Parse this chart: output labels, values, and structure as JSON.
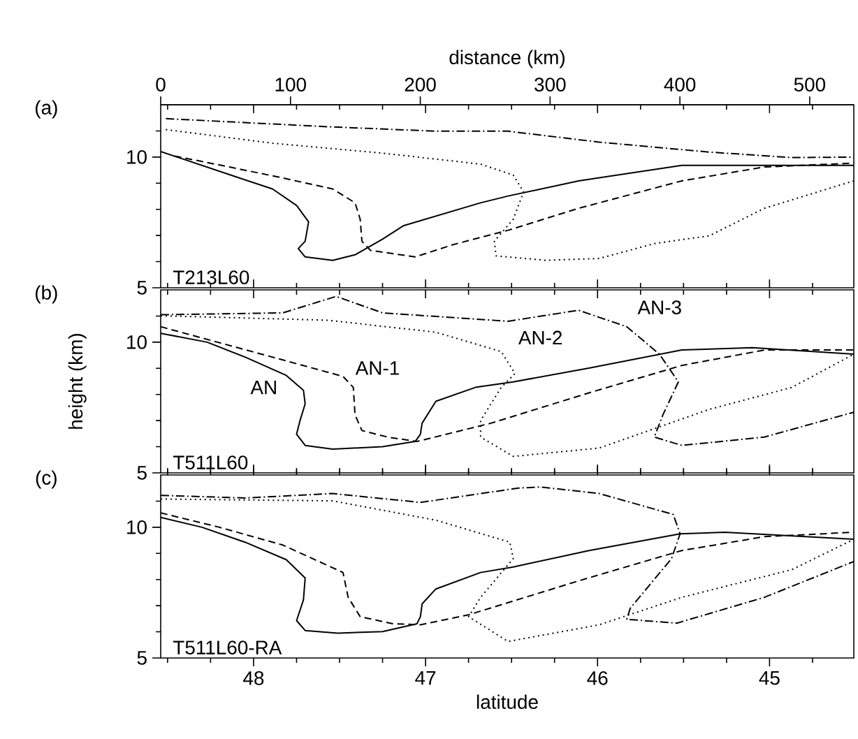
{
  "chart_data": [
    {
      "type": "line",
      "title": "(a)",
      "annotations": [
        "T213L60"
      ],
      "x2label": "distance (km)",
      "x2lim": [
        0,
        534
      ],
      "x2ticks": [
        0,
        100,
        200,
        300,
        400,
        500
      ],
      "xlim": [
        48.54,
        44.51
      ],
      "ylim": [
        5,
        12
      ],
      "tick_labels": "y",
      "xticks": [
        {
          "value": 48.5,
          "label": null
        },
        {
          "value": 48.25,
          "label": null
        },
        48,
        {
          "value": 47.75,
          "label": null
        },
        {
          "value": 47.5,
          "label": null
        },
        {
          "value": 47.25,
          "label": null
        },
        47,
        {
          "value": 46.75,
          "label": null
        },
        {
          "value": 46.5,
          "label": null
        },
        {
          "value": 46.25,
          "label": null
        },
        46,
        {
          "value": 45.75,
          "label": null
        },
        {
          "value": 45.5,
          "label": null
        },
        {
          "value": 45.25,
          "label": null
        },
        45,
        {
          "value": 44.75,
          "label": null
        }
      ],
      "yticks": [
        5,
        {
          "value": 6,
          "label": null
        },
        {
          "value": 7,
          "label": null
        },
        {
          "value": 8,
          "label": null
        },
        {
          "value": 9,
          "label": null
        },
        10,
        {
          "value": 11,
          "label": null
        }
      ],
      "series": [
        {
          "color": "#000000",
          "line_style": "solid",
          "x": [
            48.54,
            48.11,
            47.89,
            47.75,
            47.68,
            47.7,
            47.74,
            47.7,
            47.54,
            47.41,
            47.25,
            47.13,
            46.68,
            46.52,
            46.11,
            45.51,
            45.03,
            44.51
          ],
          "values": [
            10.21,
            9.26,
            8.78,
            8.15,
            7.52,
            6.78,
            6.5,
            6.18,
            6.05,
            6.26,
            6.86,
            7.37,
            8.25,
            8.51,
            9.09,
            9.68,
            9.68,
            9.68
          ]
        },
        {
          "color": "#000000",
          "line_style": "dashed",
          "x": [
            48.46,
            48.14,
            47.83,
            47.54,
            47.41,
            47.38,
            47.37,
            47.32,
            47.06,
            46.84,
            46.52,
            46.11,
            45.51,
            45.03,
            44.51
          ],
          "values": [
            10.04,
            9.62,
            9.2,
            8.78,
            8.25,
            7.62,
            6.78,
            6.43,
            6.18,
            6.65,
            7.2,
            8.04,
            9.09,
            9.62,
            9.77
          ]
        },
        {
          "color": "#000000",
          "line_style": "dotted",
          "x": [
            48.51,
            47.89,
            47.25,
            46.68,
            46.49,
            46.43,
            46.49,
            46.6,
            46.59,
            46.3,
            45.99,
            45.67,
            45.35,
            45.03,
            44.51
          ],
          "values": [
            11.05,
            10.53,
            10.15,
            9.73,
            9.31,
            8.67,
            7.62,
            6.78,
            6.22,
            6.05,
            6.12,
            6.69,
            6.99,
            8.04,
            9.09
          ]
        },
        {
          "color": "#000000",
          "line_style": "dashdot",
          "x": [
            48.51,
            47.57,
            46.94,
            46.52,
            45.99,
            45.35,
            44.87,
            44.51
          ],
          "values": [
            11.47,
            11.16,
            10.99,
            10.99,
            10.57,
            10.19,
            9.98,
            10.0
          ]
        }
      ]
    },
    {
      "type": "line",
      "title": "(b)",
      "ylabel": "height (km)",
      "xlim": [
        48.54,
        44.51
      ],
      "ylim": [
        5,
        12
      ],
      "tick_labels": "y",
      "annotations": [
        "T511L60",
        "AN",
        "AN-1",
        "AN-2",
        "AN-3"
      ],
      "xticks": [
        {
          "value": 48.5,
          "label": null
        },
        {
          "value": 48.25,
          "label": null
        },
        48,
        {
          "value": 47.75,
          "label": null
        },
        {
          "value": 47.5,
          "label": null
        },
        {
          "value": 47.25,
          "label": null
        },
        47,
        {
          "value": 46.75,
          "label": null
        },
        {
          "value": 46.5,
          "label": null
        },
        {
          "value": 46.25,
          "label": null
        },
        46,
        {
          "value": 45.75,
          "label": null
        },
        {
          "value": 45.5,
          "label": null
        },
        {
          "value": 45.25,
          "label": null
        },
        45,
        {
          "value": 44.75,
          "label": null
        }
      ],
      "yticks": [
        5,
        {
          "value": 6,
          "label": null
        },
        {
          "value": 7,
          "label": null
        },
        {
          "value": 8,
          "label": null
        },
        {
          "value": 9,
          "label": null
        },
        10,
        {
          "value": 11,
          "label": null
        }
      ],
      "series": [
        {
          "color": "#000000",
          "line_style": "solid",
          "x": [
            48.54,
            48.27,
            48.05,
            47.81,
            47.71,
            47.7,
            47.73,
            47.75,
            47.7,
            47.54,
            47.25,
            47.06,
            47.03,
            47.02,
            46.94,
            46.71,
            46.49,
            46.05,
            45.51,
            45.1,
            44.51
          ],
          "values": [
            10.34,
            10.0,
            9.43,
            8.73,
            8.16,
            7.64,
            7.0,
            6.48,
            6.05,
            5.91,
            6.0,
            6.2,
            6.48,
            6.9,
            7.74,
            8.27,
            8.48,
            9.01,
            9.7,
            9.79,
            9.54
          ]
        },
        {
          "color": "#000000",
          "line_style": "dashed",
          "x": [
            48.54,
            48.21,
            47.83,
            47.48,
            47.42,
            47.41,
            47.37,
            47.22,
            47.05,
            46.62,
            46.05,
            45.51,
            45.03,
            44.51
          ],
          "values": [
            10.59,
            10.0,
            9.32,
            8.69,
            8.27,
            7.22,
            6.62,
            6.37,
            6.2,
            6.9,
            8.06,
            9.11,
            9.7,
            9.7
          ]
        },
        {
          "color": "#000000",
          "line_style": "dotted",
          "x": [
            48.54,
            47.57,
            46.94,
            46.56,
            46.48,
            46.56,
            46.68,
            46.68,
            46.49,
            45.99,
            45.35,
            44.87,
            44.51
          ],
          "values": [
            11.01,
            10.84,
            10.38,
            9.64,
            8.8,
            8.27,
            7.0,
            6.37,
            5.63,
            5.95,
            7.43,
            8.27,
            9.54
          ]
        },
        {
          "color": "#000000",
          "line_style": "dashdot",
          "x": [
            48.54,
            47.83,
            47.52,
            47.25,
            46.52,
            46.11,
            45.83,
            45.64,
            45.53,
            45.62,
            45.67,
            45.51,
            45.03,
            44.51
          ],
          "values": [
            11.05,
            11.12,
            11.75,
            11.12,
            10.8,
            11.22,
            10.59,
            9.54,
            8.48,
            7.22,
            6.37,
            6.05,
            6.37,
            7.32
          ]
        }
      ]
    },
    {
      "type": "line",
      "title": "(c)",
      "xlabel": "latitude",
      "annotations": [
        "T511L60-RA"
      ],
      "xlim": [
        48.54,
        44.51
      ],
      "ylim": [
        5,
        12
      ],
      "xticks": [
        {
          "value": 48.5,
          "label": null
        },
        {
          "value": 48.25,
          "label": null
        },
        48,
        {
          "value": 47.75,
          "label": null
        },
        {
          "value": 47.5,
          "label": null
        },
        {
          "value": 47.25,
          "label": null
        },
        47,
        {
          "value": 46.75,
          "label": null
        },
        {
          "value": 46.5,
          "label": null
        },
        {
          "value": 46.25,
          "label": null
        },
        46,
        {
          "value": 45.75,
          "label": null
        },
        {
          "value": 45.5,
          "label": null
        },
        {
          "value": 45.25,
          "label": null
        },
        45,
        {
          "value": 44.75,
          "label": null
        }
      ],
      "yticks": [
        5,
        {
          "value": 6,
          "label": null
        },
        {
          "value": 7,
          "label": null
        },
        {
          "value": 8,
          "label": null
        },
        {
          "value": 9,
          "label": null
        },
        10,
        {
          "value": 11,
          "label": null
        }
      ],
      "series": [
        {
          "color": "#000000",
          "line_style": "solid",
          "x": [
            48.54,
            48.3,
            48.05,
            47.81,
            47.7,
            47.71,
            47.75,
            47.7,
            47.51,
            47.25,
            47.05,
            47.03,
            47.02,
            46.94,
            46.68,
            46.49,
            46.05,
            45.52,
            45.26,
            44.51
          ],
          "values": [
            10.38,
            10.0,
            9.43,
            8.76,
            8.06,
            7.22,
            6.43,
            6.05,
            5.95,
            6.01,
            6.31,
            6.58,
            7.07,
            7.64,
            8.27,
            8.48,
            9.11,
            9.75,
            9.81,
            9.54
          ]
        },
        {
          "color": "#000000",
          "line_style": "dashed",
          "x": [
            48.54,
            48.21,
            47.83,
            47.48,
            47.45,
            47.38,
            47.19,
            47.03,
            46.75,
            46.11,
            45.51,
            45.03,
            44.51
          ],
          "values": [
            10.55,
            10.02,
            9.32,
            8.27,
            7.32,
            6.58,
            6.31,
            6.27,
            6.65,
            7.95,
            9.11,
            9.64,
            9.81
          ]
        },
        {
          "color": "#000000",
          "line_style": "dotted",
          "x": [
            48.54,
            47.54,
            46.94,
            46.51,
            46.49,
            46.68,
            46.75,
            46.52,
            45.99,
            45.51,
            44.87,
            44.51
          ],
          "values": [
            11.08,
            11.01,
            10.27,
            9.43,
            8.8,
            7.32,
            6.58,
            5.63,
            6.27,
            7.32,
            8.38,
            9.54
          ]
        },
        {
          "color": "#000000",
          "line_style": "dashdot",
          "x": [
            48.54,
            48.05,
            47.54,
            47.03,
            46.46,
            46.33,
            45.99,
            45.56,
            45.52,
            45.57,
            45.81,
            45.83,
            45.54,
            45.03,
            44.51
          ],
          "values": [
            11.22,
            11.12,
            11.29,
            10.95,
            11.5,
            11.54,
            11.29,
            10.49,
            9.75,
            8.8,
            6.9,
            6.48,
            6.33,
            7.32,
            8.69
          ]
        }
      ]
    }
  ]
}
